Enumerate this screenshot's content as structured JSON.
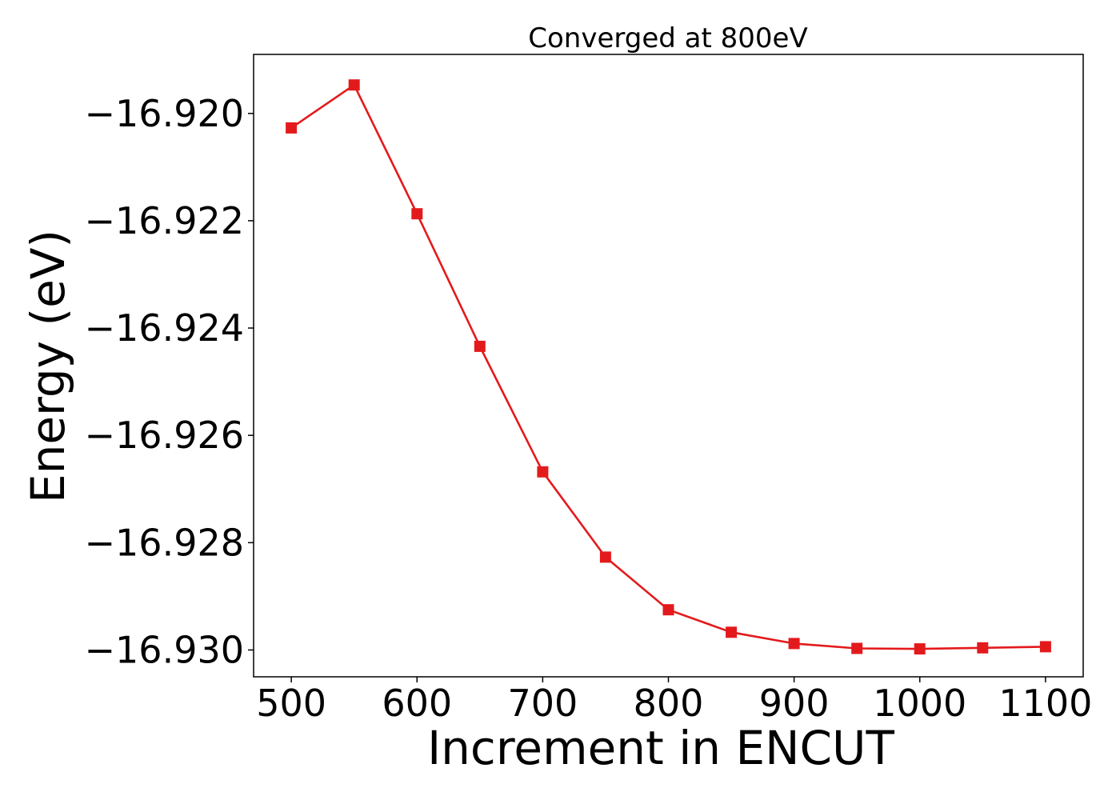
{
  "chart_data": {
    "type": "line",
    "title": "Converged at 800eV",
    "xlabel": "Increment in ENCUT",
    "ylabel": "Energy (eV)",
    "x": [
      500,
      550,
      600,
      650,
      700,
      750,
      800,
      850,
      900,
      950,
      1000,
      1050,
      1100
    ],
    "series": [
      {
        "values": [
          -16.92027,
          -16.91947,
          -16.92187,
          -16.92434,
          -16.92668,
          -16.92827,
          -16.92925,
          -16.92967,
          -16.92988,
          -16.92997,
          -16.92998,
          -16.92996,
          -16.92994
        ]
      }
    ],
    "xlim": [
      470,
      1130
    ],
    "ylim": [
      -16.9305,
      -16.9189
    ],
    "xticks": [
      500,
      600,
      700,
      800,
      900,
      1000,
      1100
    ],
    "xtick_labels": [
      "500",
      "600",
      "700",
      "800",
      "900",
      "1000",
      "1100"
    ],
    "yticks": [
      -16.92,
      -16.922,
      -16.924,
      -16.926,
      -16.928,
      -16.93
    ],
    "ytick_labels": [
      "−16.920",
      "−16.922",
      "−16.924",
      "−16.926",
      "−16.928",
      "−16.930"
    ],
    "grid": false,
    "line_color": "#e31a1c",
    "marker": "square"
  }
}
